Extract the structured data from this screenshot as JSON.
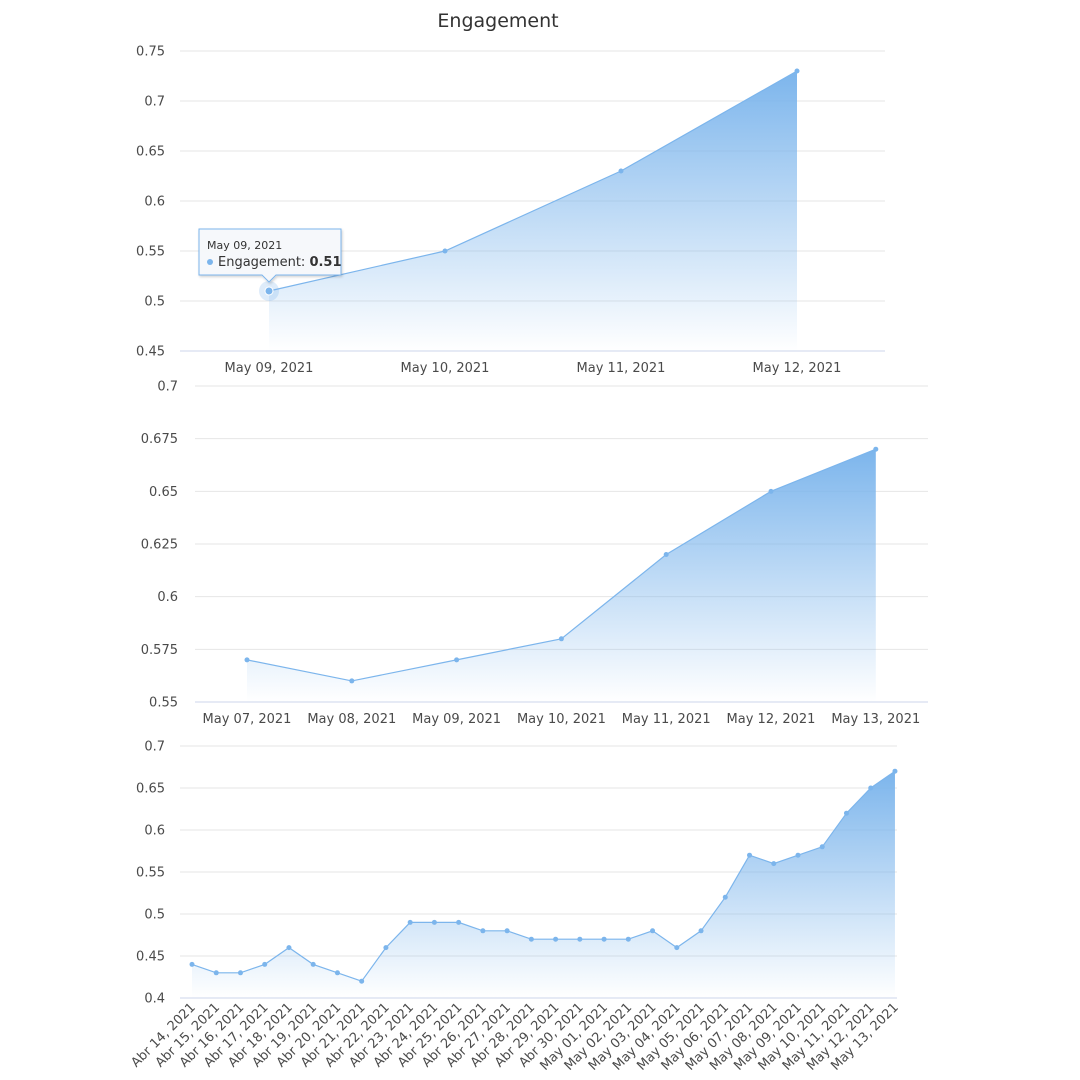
{
  "title": "Engagement",
  "colors": {
    "series": "#7cb5ec",
    "grid": "#e6e6e6",
    "axis": "#ccd6eb"
  },
  "chart_data": [
    {
      "type": "area",
      "series": [
        {
          "name": "Engagement",
          "x": [
            "May 09, 2021",
            "May 10, 2021",
            "May 11, 2021",
            "May 12, 2021"
          ],
          "values": [
            0.51,
            0.55,
            0.63,
            0.73
          ]
        }
      ],
      "ylim": [
        0.45,
        0.75
      ],
      "yticks": [
        "0.45",
        "0.5",
        "0.55",
        "0.6",
        "0.65",
        "0.7",
        "0.75"
      ],
      "grid": true,
      "tooltip": {
        "date": "May 09, 2021",
        "label": "Engagement",
        "value": "0.51"
      }
    },
    {
      "type": "area",
      "series": [
        {
          "x": [
            "May 07, 2021",
            "May 08, 2021",
            "May 09, 2021",
            "May 10, 2021",
            "May 11, 2021",
            "May 12, 2021",
            "May 13, 2021"
          ],
          "values": [
            0.57,
            0.56,
            0.57,
            0.58,
            0.62,
            0.65,
            0.67
          ]
        }
      ],
      "ylim": [
        0.55,
        0.7
      ],
      "yticks": [
        "0.55",
        "0.575",
        "0.6",
        "0.625",
        "0.65",
        "0.675",
        "0.7"
      ],
      "grid": true
    },
    {
      "type": "area",
      "series": [
        {
          "x": [
            "Abr 14, 2021",
            "Abr 15, 2021",
            "Abr 16, 2021",
            "Abr 17, 2021",
            "Abr 18, 2021",
            "Abr 19, 2021",
            "Abr 20, 2021",
            "Abr 21, 2021",
            "Abr 22, 2021",
            "Abr 23, 2021",
            "Abr 24, 2021",
            "Abr 25, 2021",
            "Abr 26, 2021",
            "Abr 27, 2021",
            "Abr 28, 2021",
            "Abr 29, 2021",
            "Abr 30, 2021",
            "May 01, 2021",
            "May 02, 2021",
            "May 03, 2021",
            "May 04, 2021",
            "May 05, 2021",
            "May 06, 2021",
            "May 07, 2021",
            "May 08, 2021",
            "May 09, 2021",
            "May 10, 2021",
            "May 11, 2021",
            "May 12, 2021",
            "May 13, 2021"
          ],
          "values": [
            0.44,
            0.43,
            0.43,
            0.44,
            0.46,
            0.44,
            0.43,
            0.42,
            0.46,
            0.49,
            0.49,
            0.49,
            0.48,
            0.48,
            0.47,
            0.47,
            0.47,
            0.47,
            0.47,
            0.48,
            0.46,
            0.48,
            0.52,
            0.57,
            0.56,
            0.57,
            0.58,
            0.62,
            0.65,
            0.67
          ]
        }
      ],
      "ylim": [
        0.4,
        0.7
      ],
      "yticks": [
        "0.4",
        "0.45",
        "0.5",
        "0.55",
        "0.6",
        "0.65",
        "0.7"
      ],
      "grid": true
    }
  ]
}
